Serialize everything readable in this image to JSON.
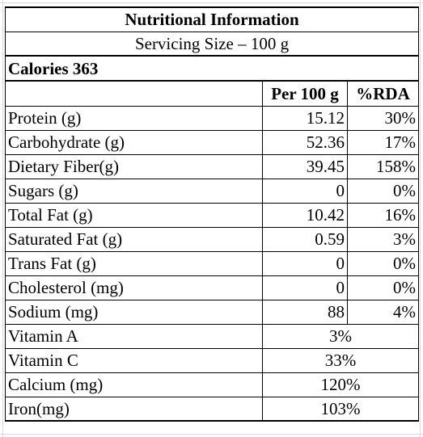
{
  "table": {
    "title": "Nutritional Information",
    "serving": "Servicing Size – 100 g",
    "calories": "Calories 363",
    "headers": {
      "per100": "Per 100 g",
      "rda": "%RDA"
    },
    "nutrients": [
      {
        "name": "Protein (g)",
        "per100": "15.12",
        "rda": "30%"
      },
      {
        "name": "Carbohydrate (g)",
        "per100": "52.36",
        "rda": "17%"
      },
      {
        "name": "Dietary Fiber(g)",
        "per100": "39.45",
        "rda": "158%"
      },
      {
        "name": "Sugars (g)",
        "per100": "0",
        "rda": "0%"
      },
      {
        "name": "Total Fat (g)",
        "per100": "10.42",
        "rda": "16%"
      },
      {
        "name": "Saturated Fat (g)",
        "per100": "0.59",
        "rda": "3%"
      },
      {
        "name": "Trans Fat (g)",
        "per100": "0",
        "rda": "0%"
      },
      {
        "name": "Cholesterol (mg)",
        "per100": "0",
        "rda": "0%"
      },
      {
        "name": "Sodium (mg)",
        "per100": "88",
        "rda": "4%"
      }
    ],
    "vitamins": [
      {
        "name": "Vitamin A",
        "value": "3%"
      },
      {
        "name": "Vitamin C",
        "value": "33%"
      },
      {
        "name": "Calcium (mg)",
        "value": "120%"
      },
      {
        "name": "Iron(mg)",
        "value": "103%"
      }
    ]
  },
  "colors": {
    "border": "#000000",
    "gridline": "#d9d9d9",
    "background": "#ffffff"
  }
}
